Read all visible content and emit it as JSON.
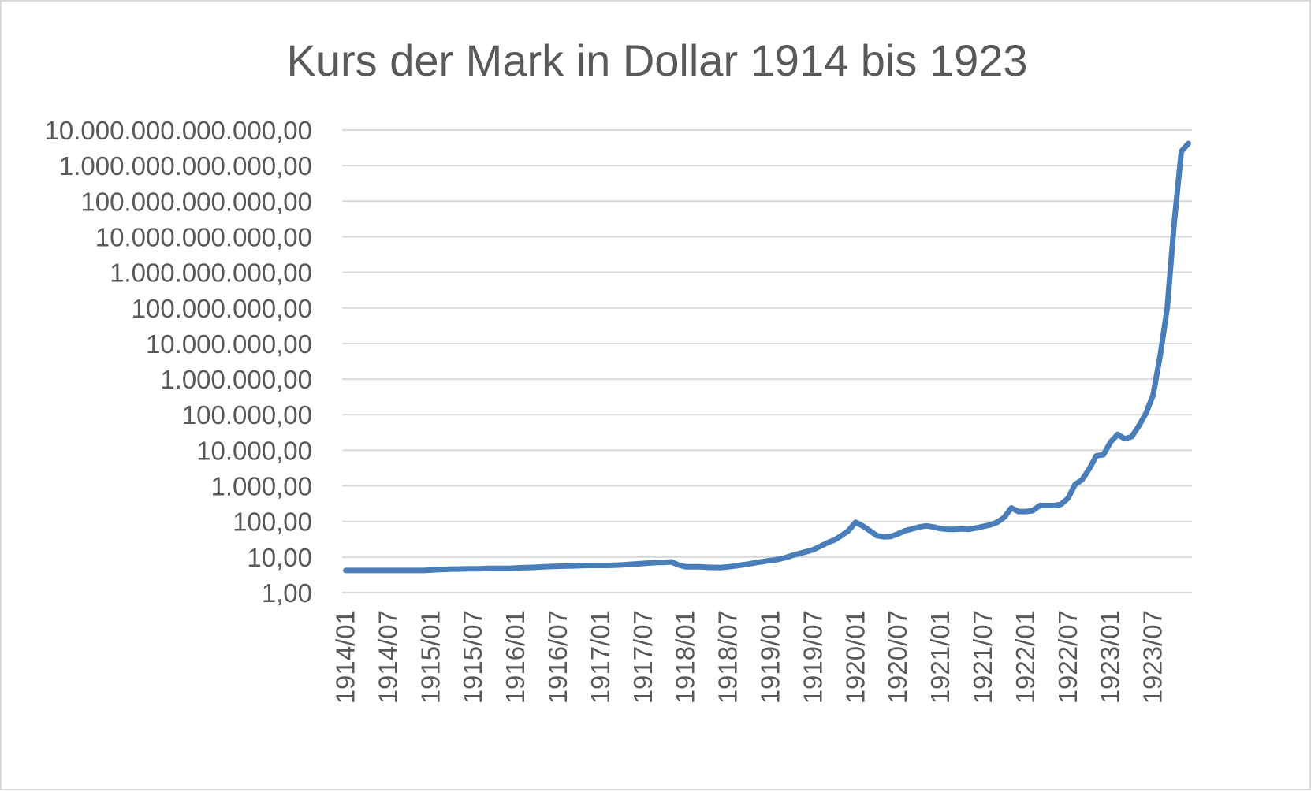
{
  "chart_data": {
    "type": "line",
    "title": "Kurs der Mark in Dollar 1914 bis 1923",
    "xlabel": "",
    "ylabel": "",
    "y_scale": "log",
    "ylim": [
      1,
      10000000000000
    ],
    "grid": true,
    "legend": "none",
    "colors": {
      "line": "#4a7ebb",
      "grid": "#d9d9d9",
      "text": "#595959",
      "border": "#d9d9d9"
    },
    "y_ticks": [
      {
        "value": 1,
        "label": "1,00"
      },
      {
        "value": 10,
        "label": "10,00"
      },
      {
        "value": 100,
        "label": "100,00"
      },
      {
        "value": 1000,
        "label": "1.000,00"
      },
      {
        "value": 10000,
        "label": "10.000,00"
      },
      {
        "value": 100000,
        "label": "100.000,00"
      },
      {
        "value": 1000000,
        "label": "1.000.000,00"
      },
      {
        "value": 10000000,
        "label": "10.000.000,00"
      },
      {
        "value": 100000000,
        "label": "100.000.000,00"
      },
      {
        "value": 1000000000,
        "label": "1.000.000.000,00"
      },
      {
        "value": 10000000000,
        "label": "10.000.000.000,00"
      },
      {
        "value": 100000000000,
        "label": "100.000.000.000,00"
      },
      {
        "value": 1000000000000,
        "label": "1.000.000.000.000,00"
      },
      {
        "value": 10000000000000,
        "label": "10.000.000.000.000,00"
      }
    ],
    "x_tick_labels": [
      "1914/01",
      "1914/07",
      "1915/01",
      "1915/07",
      "1916/01",
      "1916/07",
      "1917/01",
      "1917/07",
      "1918/01",
      "1918/07",
      "1919/01",
      "1919/07",
      "1920/01",
      "1920/07",
      "1921/01",
      "1921/07",
      "1922/01",
      "1922/07",
      "1923/01",
      "1923/07"
    ],
    "x": [
      "1914/01",
      "1914/02",
      "1914/03",
      "1914/04",
      "1914/05",
      "1914/06",
      "1914/07",
      "1914/08",
      "1914/09",
      "1914/10",
      "1914/11",
      "1914/12",
      "1915/01",
      "1915/02",
      "1915/03",
      "1915/04",
      "1915/05",
      "1915/06",
      "1915/07",
      "1915/08",
      "1915/09",
      "1915/10",
      "1915/11",
      "1915/12",
      "1916/01",
      "1916/02",
      "1916/03",
      "1916/04",
      "1916/05",
      "1916/06",
      "1916/07",
      "1916/08",
      "1916/09",
      "1916/10",
      "1916/11",
      "1916/12",
      "1917/01",
      "1917/02",
      "1917/03",
      "1917/04",
      "1917/05",
      "1917/06",
      "1917/07",
      "1917/08",
      "1917/09",
      "1917/10",
      "1917/11",
      "1917/12",
      "1918/01",
      "1918/02",
      "1918/03",
      "1918/04",
      "1918/05",
      "1918/06",
      "1918/07",
      "1918/08",
      "1918/09",
      "1918/10",
      "1918/11",
      "1918/12",
      "1919/01",
      "1919/02",
      "1919/03",
      "1919/04",
      "1919/05",
      "1919/06",
      "1919/07",
      "1919/08",
      "1919/09",
      "1919/10",
      "1919/11",
      "1919/12",
      "1920/01",
      "1920/02",
      "1920/03",
      "1920/04",
      "1920/05",
      "1920/06",
      "1920/07",
      "1920/08",
      "1920/09",
      "1920/10",
      "1920/11",
      "1920/12",
      "1921/01",
      "1921/02",
      "1921/03",
      "1921/04",
      "1921/05",
      "1921/06",
      "1921/07",
      "1921/08",
      "1921/09",
      "1921/10",
      "1921/11",
      "1921/12",
      "1922/01",
      "1922/02",
      "1922/03",
      "1922/04",
      "1922/05",
      "1922/06",
      "1922/07",
      "1922/08",
      "1922/09",
      "1922/10",
      "1922/11",
      "1922/12",
      "1923/01",
      "1923/02",
      "1923/03",
      "1923/04",
      "1923/05",
      "1923/06",
      "1923/07",
      "1923/08",
      "1923/09",
      "1923/10",
      "1923/11",
      "1923/12"
    ],
    "series": [
      {
        "values": [
          4.2,
          4.2,
          4.2,
          4.2,
          4.2,
          4.2,
          4.2,
          4.2,
          4.2,
          4.2,
          4.2,
          4.2,
          4.3,
          4.4,
          4.5,
          4.6,
          4.6,
          4.7,
          4.7,
          4.7,
          4.8,
          4.8,
          4.8,
          4.8,
          4.9,
          5.0,
          5.1,
          5.2,
          5.3,
          5.4,
          5.5,
          5.6,
          5.6,
          5.7,
          5.8,
          5.8,
          5.8,
          5.8,
          5.9,
          6.0,
          6.2,
          6.4,
          6.6,
          6.8,
          7.0,
          7.1,
          7.3,
          6.0,
          5.3,
          5.3,
          5.3,
          5.2,
          5.1,
          5.1,
          5.3,
          5.6,
          6.0,
          6.4,
          7.0,
          7.5,
          8.0,
          8.5,
          9.5,
          11.0,
          12.5,
          14.0,
          16.0,
          20.0,
          25.0,
          30.0,
          40.0,
          55.0,
          95.0,
          75.0,
          55.0,
          40.0,
          37.0,
          38.0,
          45.0,
          55.0,
          62.0,
          70.0,
          75.0,
          70.0,
          63.0,
          60.0,
          60.0,
          62.0,
          60.0,
          65.0,
          72.0,
          80.0,
          95.0,
          130.0,
          240.0,
          190.0,
          190.0,
          200.0,
          280.0,
          280.0,
          280.0,
          300.0,
          450.0,
          1100.0,
          1500.0,
          3000.0,
          7000.0,
          7500.0,
          17000.0,
          28000.0,
          21000.0,
          24000.0,
          48000.0,
          110000.0,
          350000.0,
          4500000.0,
          100000000.0,
          25000000000.0,
          2500000000000.0,
          4200000000000.0
        ]
      }
    ]
  }
}
